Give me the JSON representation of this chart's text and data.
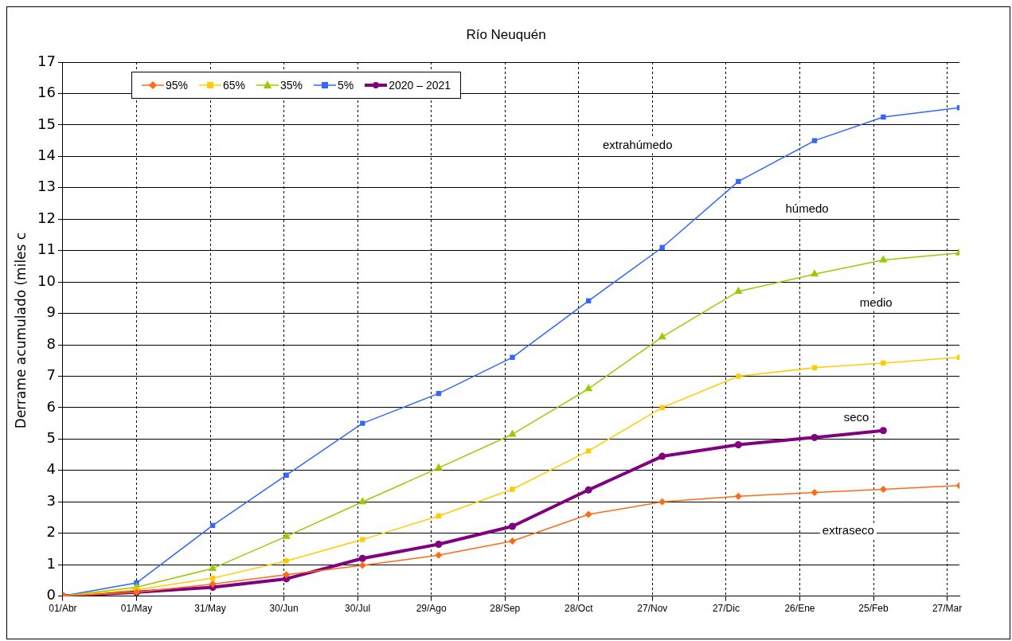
{
  "chart_data": {
    "type": "line",
    "title": "Río Neuquén",
    "ylabel": "Derrame acumulado (miles c",
    "x": [
      "2020-04-01",
      "2020-05-01",
      "2020-06-01",
      "2020-07-01",
      "2020-08-01",
      "2020-09-01",
      "2020-10-01",
      "2020-11-01",
      "2020-12-01",
      "2021-01-01",
      "2021-02-01",
      "2021-03-01",
      "2021-04-01"
    ],
    "series": [
      {
        "name": "95%",
        "color": "#ff6a13",
        "marker": "diamond",
        "values": [
          0,
          0.12,
          0.38,
          0.68,
          0.98,
          1.3,
          1.75,
          2.6,
          3.0,
          3.18,
          3.3,
          3.4,
          3.52
        ]
      },
      {
        "name": "65%",
        "color": "#ffcc00",
        "marker": "square",
        "values": [
          0,
          0.2,
          0.57,
          1.12,
          1.8,
          2.55,
          3.4,
          4.62,
          6.0,
          7.0,
          7.27,
          7.42,
          7.6
        ]
      },
      {
        "name": "35%",
        "color": "#99cc00",
        "marker": "triangle",
        "values": [
          0,
          0.28,
          0.88,
          1.9,
          3.0,
          4.08,
          5.15,
          6.6,
          8.25,
          9.7,
          10.25,
          10.7,
          10.92
        ]
      },
      {
        "name": "5%",
        "color": "#3366ff",
        "marker": "square",
        "values": [
          0,
          0.42,
          2.25,
          3.85,
          5.5,
          6.45,
          7.6,
          9.4,
          11.1,
          13.2,
          14.5,
          15.25,
          15.55
        ]
      },
      {
        "name": "2020 – 2021",
        "color": "#800080",
        "marker": "circle",
        "values": [
          0,
          0.12,
          0.28,
          0.55,
          1.2,
          1.65,
          2.22,
          3.38,
          4.45,
          4.82,
          5.05,
          5.27,
          null
        ]
      }
    ],
    "xlim": [
      "2020-04-01",
      "2021-04-01"
    ],
    "xticks": [
      {
        "value": "2020-04-01",
        "label": "01/Abr"
      },
      {
        "value": "2020-05-01",
        "label": "01/May"
      },
      {
        "value": "2020-05-31",
        "label": "31/May"
      },
      {
        "value": "2020-06-30",
        "label": "30/Jun"
      },
      {
        "value": "2020-07-30",
        "label": "30/Jul"
      },
      {
        "value": "2020-08-29",
        "label": "29/Ago"
      },
      {
        "value": "2020-09-28",
        "label": "28/Sep"
      },
      {
        "value": "2020-10-28",
        "label": "28/Oct"
      },
      {
        "value": "2020-11-27",
        "label": "27/Nov"
      },
      {
        "value": "2020-12-27",
        "label": "27/Dic"
      },
      {
        "value": "2021-01-26",
        "label": "26/Ene"
      },
      {
        "value": "2021-02-25",
        "label": "25/Feb"
      },
      {
        "value": "2021-03-27",
        "label": "27/Mar"
      }
    ],
    "ylim": [
      0,
      17
    ],
    "yticks": [
      0,
      1,
      2,
      3,
      4,
      5,
      6,
      7,
      8,
      9,
      10,
      11,
      12,
      13,
      14,
      15,
      16,
      17
    ],
    "grid": true,
    "legend": "top left",
    "annotations": [
      "extrahúmedo",
      "húmedo",
      "medio",
      "seco",
      "extraseco"
    ]
  }
}
